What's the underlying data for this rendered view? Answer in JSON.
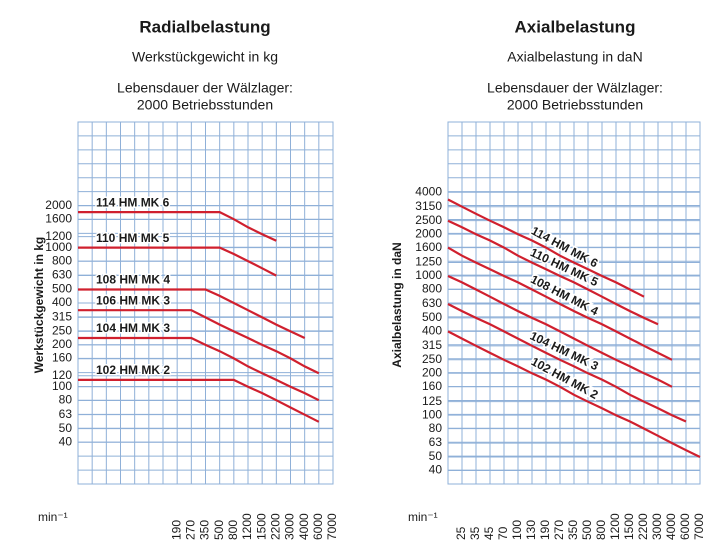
{
  "chart_data": [
    {
      "type": "line",
      "title": "Radialbelastung",
      "subtitle": "Werkstückgewicht in kg",
      "note": [
        "Lebensdauer der Wälzlager:",
        "2000 Betriebsstunden"
      ],
      "ylabel": "Werkstückgewicht in kg",
      "xlabel": "min⁻¹",
      "categories": [
        null,
        null,
        null,
        null,
        null,
        null,
        null,
        190,
        270,
        350,
        500,
        800,
        1200,
        1500,
        2200,
        3000,
        4000,
        6000,
        7000
      ],
      "series": [
        {
          "name": "114 HM MK 6",
          "color": "#d0202e",
          "values": [
            1800,
            1800,
            1800,
            1800,
            1800,
            1800,
            1800,
            1800,
            1800,
            1800,
            1800,
            1600,
            1400,
            1250,
            1120,
            null,
            null,
            null,
            null
          ]
        },
        {
          "name": "110 HM MK 5",
          "color": "#d0202e",
          "values": [
            1000,
            1000,
            1000,
            1000,
            1000,
            1000,
            1000,
            1000,
            1000,
            1000,
            1000,
            900,
            800,
            710,
            630,
            null,
            null,
            null,
            null
          ]
        },
        {
          "name": "108 HM MK 4",
          "color": "#d0202e",
          "values": [
            500,
            500,
            500,
            500,
            500,
            500,
            500,
            500,
            500,
            500,
            450,
            400,
            355,
            315,
            280,
            250,
            224,
            null,
            null
          ]
        },
        {
          "name": "106 HM MK 3",
          "color": "#d0202e",
          "values": [
            355,
            355,
            355,
            355,
            355,
            355,
            355,
            355,
            355,
            315,
            280,
            250,
            224,
            200,
            180,
            160,
            140,
            125,
            null
          ]
        },
        {
          "name": "104 HM MK 3",
          "color": "#d0202e",
          "values": [
            224,
            224,
            224,
            224,
            224,
            224,
            224,
            224,
            224,
            200,
            180,
            160,
            140,
            125,
            112,
            100,
            90,
            80,
            null
          ]
        },
        {
          "name": "102 HM MK 2",
          "color": "#d0202e",
          "values": [
            112,
            112,
            112,
            112,
            112,
            112,
            112,
            112,
            112,
            112,
            112,
            112,
            100,
            90,
            80,
            71,
            63,
            56,
            null
          ]
        }
      ],
      "ylim": [
        20,
        8000
      ],
      "log_y": true,
      "grid": true,
      "yticks": [
        40,
        50,
        63,
        80,
        100,
        120,
        160,
        200,
        250,
        315,
        400,
        500,
        630,
        800,
        1000,
        1200,
        1600,
        2000
      ]
    },
    {
      "type": "line",
      "title": "Axialbelastung",
      "subtitle": "Axialbelastung in daN",
      "note": [
        "Lebensdauer der Wälzlager:",
        "2000 Betriebsstunden"
      ],
      "ylabel": "Axialbelastung in daN",
      "xlabel": "min⁻¹",
      "categories": [
        null,
        25,
        35,
        45,
        70,
        100,
        130,
        190,
        270,
        350,
        500,
        800,
        1200,
        1500,
        2200,
        3000,
        4000,
        6000,
        7000
      ],
      "series": [
        {
          "name": "114 HM MK 6",
          "color": "#d0202e",
          "values": [
            3550,
            3150,
            2800,
            2500,
            2240,
            2000,
            1800,
            1600,
            1400,
            1250,
            1120,
            1000,
            900,
            800,
            710,
            null,
            null,
            null,
            null
          ]
        },
        {
          "name": "110 HM MK 5",
          "color": "#d0202e",
          "values": [
            2500,
            2240,
            2000,
            1800,
            1600,
            1400,
            1250,
            1120,
            1000,
            900,
            800,
            710,
            630,
            560,
            500,
            450,
            null,
            null,
            null
          ]
        },
        {
          "name": "108 HM MK 4",
          "color": "#d0202e",
          "values": [
            1600,
            1400,
            1250,
            1120,
            1000,
            900,
            800,
            710,
            630,
            560,
            500,
            450,
            400,
            355,
            315,
            280,
            250,
            null,
            null
          ]
        },
        {
          "color": "#d0202e",
          "values": [
            1000,
            900,
            800,
            710,
            630,
            560,
            500,
            450,
            400,
            355,
            315,
            280,
            250,
            224,
            200,
            180,
            160,
            null,
            null
          ]
        },
        {
          "name": "104 HM MK 3",
          "color": "#d0202e",
          "values": [
            630,
            560,
            500,
            450,
            400,
            355,
            315,
            280,
            250,
            224,
            200,
            180,
            160,
            140,
            125,
            112,
            100,
            90,
            null
          ]
        },
        {
          "name": "102 HM MK 2",
          "color": "#d0202e",
          "values": [
            400,
            355,
            315,
            280,
            250,
            224,
            200,
            180,
            160,
            140,
            125,
            112,
            100,
            90,
            80,
            71,
            63,
            56,
            50
          ]
        }
      ],
      "ylim": [
        32,
        12800
      ],
      "log_y": true,
      "grid": true,
      "yticks": [
        40,
        50,
        63,
        80,
        100,
        125,
        160,
        200,
        250,
        315,
        400,
        500,
        630,
        800,
        1000,
        1250,
        1600,
        2000,
        2500,
        3150,
        4000
      ]
    }
  ]
}
